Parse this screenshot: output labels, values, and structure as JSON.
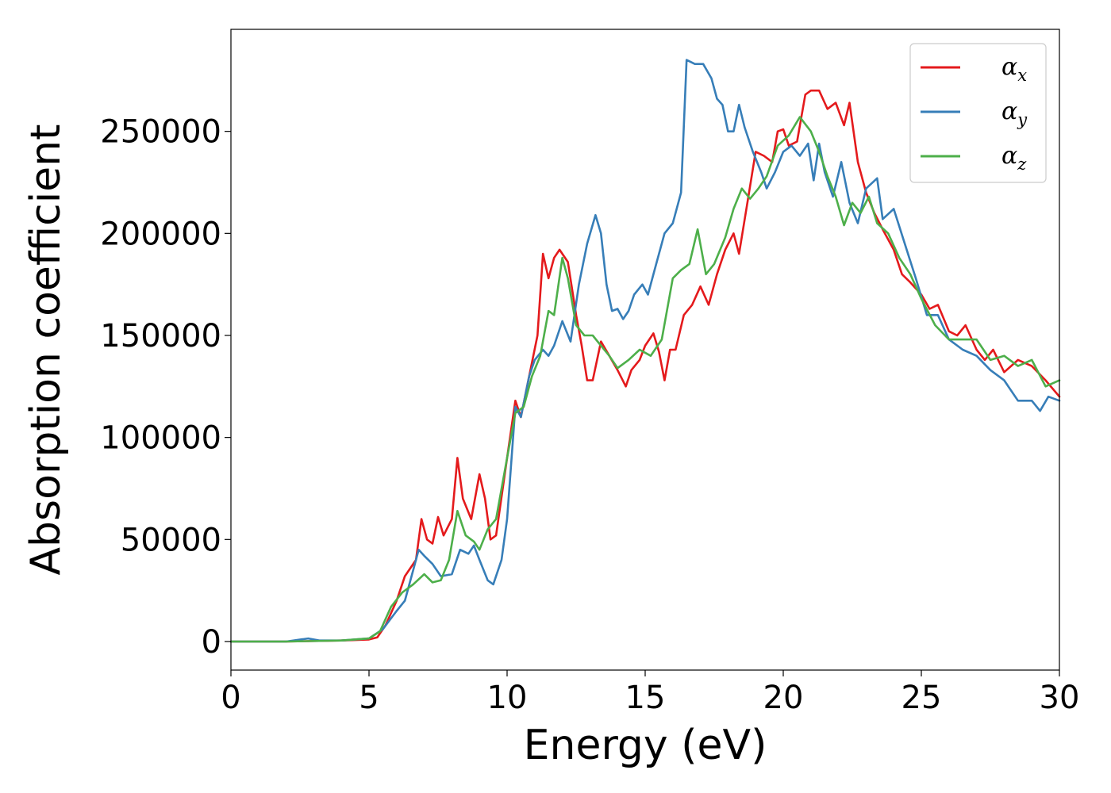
{
  "chart_data": {
    "type": "line",
    "xlabel": "Energy (eV)",
    "ylabel": "Absorption coefficient",
    "xlim": [
      0,
      30
    ],
    "ylim": [
      -14000,
      300000
    ],
    "xticks": [
      0,
      5,
      10,
      15,
      20,
      25,
      30
    ],
    "yticks": [
      0,
      50000,
      100000,
      150000,
      200000,
      250000
    ],
    "grid": false,
    "legend_position": "top-right",
    "series": [
      {
        "name": "α_x",
        "base": "α",
        "sub": "x",
        "color": "#e41a1c",
        "points": [
          [
            0,
            0
          ],
          [
            2,
            0
          ],
          [
            4,
            500
          ],
          [
            5,
            1000
          ],
          [
            5.3,
            2000
          ],
          [
            5.6,
            8000
          ],
          [
            6,
            20000
          ],
          [
            6.3,
            32000
          ],
          [
            6.7,
            40000
          ],
          [
            6.9,
            60000
          ],
          [
            7.1,
            50000
          ],
          [
            7.3,
            48000
          ],
          [
            7.5,
            61000
          ],
          [
            7.7,
            52000
          ],
          [
            8,
            60000
          ],
          [
            8.2,
            90000
          ],
          [
            8.4,
            70000
          ],
          [
            8.7,
            60000
          ],
          [
            9,
            82000
          ],
          [
            9.2,
            70000
          ],
          [
            9.4,
            50000
          ],
          [
            9.6,
            52000
          ],
          [
            10,
            90000
          ],
          [
            10.3,
            118000
          ],
          [
            10.5,
            110000
          ],
          [
            10.8,
            130000
          ],
          [
            11.1,
            150000
          ],
          [
            11.3,
            190000
          ],
          [
            11.5,
            178000
          ],
          [
            11.7,
            188000
          ],
          [
            11.9,
            192000
          ],
          [
            12.2,
            186000
          ],
          [
            12.5,
            160000
          ],
          [
            12.7,
            145000
          ],
          [
            12.9,
            128000
          ],
          [
            13.1,
            128000
          ],
          [
            13.4,
            147000
          ],
          [
            13.7,
            140000
          ],
          [
            14,
            133000
          ],
          [
            14.3,
            125000
          ],
          [
            14.5,
            133000
          ],
          [
            14.8,
            138000
          ],
          [
            15,
            145000
          ],
          [
            15.3,
            151000
          ],
          [
            15.5,
            142000
          ],
          [
            15.7,
            128000
          ],
          [
            15.9,
            143000
          ],
          [
            16.1,
            143000
          ],
          [
            16.4,
            160000
          ],
          [
            16.7,
            165000
          ],
          [
            17,
            174000
          ],
          [
            17.3,
            165000
          ],
          [
            17.6,
            180000
          ],
          [
            17.9,
            192000
          ],
          [
            18.2,
            200000
          ],
          [
            18.4,
            190000
          ],
          [
            18.7,
            215000
          ],
          [
            19,
            240000
          ],
          [
            19.3,
            238000
          ],
          [
            19.6,
            235000
          ],
          [
            19.8,
            250000
          ],
          [
            20,
            251000
          ],
          [
            20.2,
            243000
          ],
          [
            20.5,
            245000
          ],
          [
            20.8,
            268000
          ],
          [
            21,
            270000
          ],
          [
            21.3,
            270000
          ],
          [
            21.6,
            261000
          ],
          [
            21.9,
            264000
          ],
          [
            22.2,
            253000
          ],
          [
            22.4,
            264000
          ],
          [
            22.7,
            235000
          ],
          [
            23,
            220000
          ],
          [
            23.3,
            210000
          ],
          [
            23.6,
            202000
          ],
          [
            24,
            192000
          ],
          [
            24.3,
            180000
          ],
          [
            24.6,
            176000
          ],
          [
            25,
            170000
          ],
          [
            25.3,
            163000
          ],
          [
            25.6,
            165000
          ],
          [
            26,
            152000
          ],
          [
            26.3,
            150000
          ],
          [
            26.6,
            155000
          ],
          [
            27,
            143000
          ],
          [
            27.3,
            138000
          ],
          [
            27.6,
            143000
          ],
          [
            28,
            132000
          ],
          [
            28.5,
            138000
          ],
          [
            29,
            135000
          ],
          [
            29.5,
            128000
          ],
          [
            30,
            120000
          ]
        ]
      },
      {
        "name": "α_y",
        "base": "α",
        "sub": "y",
        "color": "#377eb8",
        "points": [
          [
            0,
            0
          ],
          [
            2,
            0
          ],
          [
            2.8,
            1500
          ],
          [
            3.2,
            500
          ],
          [
            4,
            500
          ],
          [
            5,
            1500
          ],
          [
            5.5,
            6000
          ],
          [
            6,
            15000
          ],
          [
            6.3,
            20000
          ],
          [
            6.6,
            35000
          ],
          [
            6.8,
            45000
          ],
          [
            7,
            42000
          ],
          [
            7.3,
            38000
          ],
          [
            7.6,
            32000
          ],
          [
            8,
            33000
          ],
          [
            8.3,
            45000
          ],
          [
            8.6,
            43000
          ],
          [
            8.8,
            47000
          ],
          [
            9,
            40000
          ],
          [
            9.3,
            30000
          ],
          [
            9.5,
            28000
          ],
          [
            9.8,
            40000
          ],
          [
            10,
            60000
          ],
          [
            10.3,
            115000
          ],
          [
            10.5,
            110000
          ],
          [
            10.8,
            130000
          ],
          [
            11,
            138000
          ],
          [
            11.3,
            143000
          ],
          [
            11.5,
            140000
          ],
          [
            11.7,
            145000
          ],
          [
            12,
            157000
          ],
          [
            12.3,
            147000
          ],
          [
            12.6,
            175000
          ],
          [
            12.9,
            195000
          ],
          [
            13.2,
            209000
          ],
          [
            13.4,
            200000
          ],
          [
            13.6,
            175000
          ],
          [
            13.8,
            162000
          ],
          [
            14,
            163000
          ],
          [
            14.2,
            158000
          ],
          [
            14.4,
            162000
          ],
          [
            14.6,
            170000
          ],
          [
            14.9,
            175000
          ],
          [
            15.1,
            170000
          ],
          [
            15.4,
            185000
          ],
          [
            15.7,
            200000
          ],
          [
            16,
            205000
          ],
          [
            16.3,
            220000
          ],
          [
            16.5,
            285000
          ],
          [
            16.8,
            283000
          ],
          [
            17.1,
            283000
          ],
          [
            17.4,
            276000
          ],
          [
            17.6,
            266000
          ],
          [
            17.8,
            263000
          ],
          [
            18,
            250000
          ],
          [
            18.2,
            250000
          ],
          [
            18.4,
            263000
          ],
          [
            18.6,
            252000
          ],
          [
            18.9,
            240000
          ],
          [
            19.2,
            230000
          ],
          [
            19.4,
            222000
          ],
          [
            19.7,
            230000
          ],
          [
            20,
            240000
          ],
          [
            20.3,
            243000
          ],
          [
            20.6,
            238000
          ],
          [
            20.9,
            244000
          ],
          [
            21.1,
            226000
          ],
          [
            21.3,
            244000
          ],
          [
            21.5,
            230000
          ],
          [
            21.8,
            218000
          ],
          [
            22.1,
            235000
          ],
          [
            22.4,
            215000
          ],
          [
            22.7,
            205000
          ],
          [
            23,
            222000
          ],
          [
            23.4,
            227000
          ],
          [
            23.6,
            207000
          ],
          [
            24,
            212000
          ],
          [
            24.4,
            195000
          ],
          [
            24.8,
            178000
          ],
          [
            25.2,
            160000
          ],
          [
            25.6,
            160000
          ],
          [
            26,
            148000
          ],
          [
            26.5,
            143000
          ],
          [
            27,
            140000
          ],
          [
            27.5,
            133000
          ],
          [
            28,
            128000
          ],
          [
            28.5,
            118000
          ],
          [
            29,
            118000
          ],
          [
            29.3,
            113000
          ],
          [
            29.6,
            120000
          ],
          [
            30,
            118000
          ]
        ]
      },
      {
        "name": "α_z",
        "base": "α",
        "sub": "z",
        "color": "#4daf4a",
        "points": [
          [
            0,
            0
          ],
          [
            2,
            0
          ],
          [
            4,
            500
          ],
          [
            5,
            1500
          ],
          [
            5.4,
            5000
          ],
          [
            5.8,
            17000
          ],
          [
            6.2,
            24000
          ],
          [
            6.6,
            28000
          ],
          [
            7,
            33000
          ],
          [
            7.3,
            29000
          ],
          [
            7.6,
            30000
          ],
          [
            7.9,
            40000
          ],
          [
            8.2,
            64000
          ],
          [
            8.5,
            52000
          ],
          [
            8.8,
            49000
          ],
          [
            9,
            45000
          ],
          [
            9.3,
            55000
          ],
          [
            9.6,
            60000
          ],
          [
            10,
            90000
          ],
          [
            10.3,
            112000
          ],
          [
            10.6,
            115000
          ],
          [
            10.9,
            130000
          ],
          [
            11.2,
            140000
          ],
          [
            11.5,
            162000
          ],
          [
            11.7,
            160000
          ],
          [
            12,
            188000
          ],
          [
            12.2,
            178000
          ],
          [
            12.5,
            155000
          ],
          [
            12.8,
            150000
          ],
          [
            13.1,
            150000
          ],
          [
            13.4,
            145000
          ],
          [
            13.7,
            140000
          ],
          [
            14,
            134000
          ],
          [
            14.4,
            138000
          ],
          [
            14.8,
            143000
          ],
          [
            15.2,
            140000
          ],
          [
            15.6,
            148000
          ],
          [
            16,
            178000
          ],
          [
            16.3,
            182000
          ],
          [
            16.6,
            185000
          ],
          [
            16.9,
            202000
          ],
          [
            17.2,
            180000
          ],
          [
            17.5,
            185000
          ],
          [
            17.9,
            198000
          ],
          [
            18.2,
            212000
          ],
          [
            18.5,
            222000
          ],
          [
            18.8,
            217000
          ],
          [
            19.1,
            222000
          ],
          [
            19.4,
            228000
          ],
          [
            19.8,
            243000
          ],
          [
            20.2,
            248000
          ],
          [
            20.6,
            257000
          ],
          [
            21,
            250000
          ],
          [
            21.3,
            240000
          ],
          [
            21.6,
            228000
          ],
          [
            21.9,
            218000
          ],
          [
            22.2,
            204000
          ],
          [
            22.5,
            215000
          ],
          [
            22.8,
            210000
          ],
          [
            23.1,
            218000
          ],
          [
            23.4,
            205000
          ],
          [
            23.8,
            200000
          ],
          [
            24.2,
            188000
          ],
          [
            24.6,
            180000
          ],
          [
            25,
            168000
          ],
          [
            25.5,
            155000
          ],
          [
            26,
            148000
          ],
          [
            26.5,
            148000
          ],
          [
            27,
            148000
          ],
          [
            27.5,
            138000
          ],
          [
            28,
            140000
          ],
          [
            28.5,
            135000
          ],
          [
            29,
            138000
          ],
          [
            29.5,
            125000
          ],
          [
            30,
            128000
          ]
        ]
      }
    ]
  }
}
